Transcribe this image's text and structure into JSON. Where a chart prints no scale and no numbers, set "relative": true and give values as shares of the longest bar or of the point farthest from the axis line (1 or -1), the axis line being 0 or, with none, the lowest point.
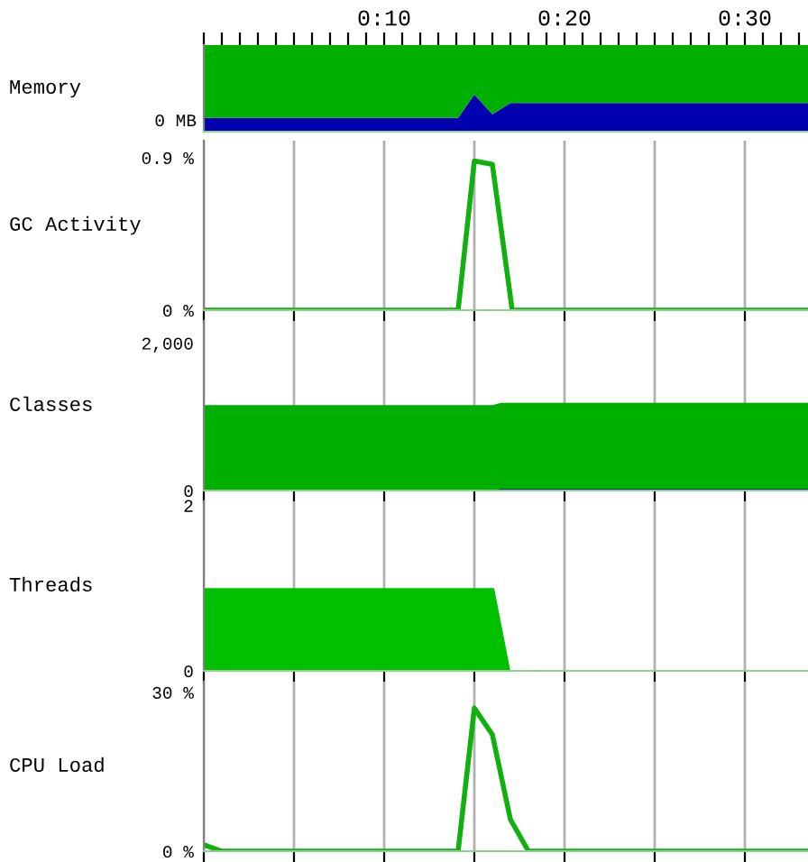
{
  "chart_data": [
    {
      "type": "area",
      "ylabel": "Memory",
      "relative": true,
      "stacked": true,
      "annotations": [
        "0 MB"
      ],
      "tick_labels": "x",
      "xlim": [
        0,
        33.5
      ],
      "xticks": [
        {
          "value": 0,
          "label": null
        },
        {
          "value": 1,
          "label": null
        },
        {
          "value": 2,
          "label": null
        },
        {
          "value": 3,
          "label": null
        },
        {
          "value": 4,
          "label": null
        },
        {
          "value": 5,
          "label": null
        },
        {
          "value": 6,
          "label": null
        },
        {
          "value": 7,
          "label": null
        },
        {
          "value": 8,
          "label": null
        },
        {
          "value": 9,
          "label": null
        },
        {
          "value": 10,
          "label": "0:10"
        },
        {
          "value": 11,
          "label": null
        },
        {
          "value": 12,
          "label": null
        },
        {
          "value": 13,
          "label": null
        },
        {
          "value": 14,
          "label": null
        },
        {
          "value": 15,
          "label": null
        },
        {
          "value": 16,
          "label": null
        },
        {
          "value": 17,
          "label": null
        },
        {
          "value": 18,
          "label": null
        },
        {
          "value": 19,
          "label": null
        },
        {
          "value": 20,
          "label": "0:20"
        },
        {
          "value": 21,
          "label": null
        },
        {
          "value": 22,
          "label": null
        },
        {
          "value": 23,
          "label": null
        },
        {
          "value": 24,
          "label": null
        },
        {
          "value": 25,
          "label": null
        },
        {
          "value": 26,
          "label": null
        },
        {
          "value": 27,
          "label": null
        },
        {
          "value": 28,
          "label": null
        },
        {
          "value": 29,
          "label": null
        },
        {
          "value": 30,
          "label": "0:30"
        },
        {
          "value": 31,
          "label": null
        },
        {
          "value": 32,
          "label": null
        },
        {
          "value": 33,
          "label": null
        }
      ],
      "series": [
        {
          "color": "#0000b0",
          "x": [
            0,
            14.1,
            15,
            16,
            17,
            33.5
          ],
          "values": [
            0.16,
            0.16,
            0.43,
            0.2,
            0.33,
            0.33
          ]
        },
        {
          "color": "#00b000",
          "x": [
            0,
            14.1,
            15,
            16,
            17,
            33.5
          ],
          "values": [
            0.84,
            0.84,
            0.57,
            0.8,
            0.67,
            0.67
          ]
        }
      ]
    },
    {
      "type": "line",
      "ylabel": "GC Activity",
      "tick_labels": "y",
      "grid": "x",
      "xlim": [
        0,
        33.5
      ],
      "ylim": [
        0,
        1.0
      ],
      "yticks": [
        {
          "value": 0,
          "label": "0 %"
        },
        {
          "value": 0.9,
          "label": "0.9 %"
        }
      ],
      "series": [
        {
          "color": "#10b010",
          "x": [
            0,
            14.1,
            15,
            16,
            17.1,
            33.5
          ],
          "values": [
            0,
            0,
            0.88,
            0.86,
            0,
            0
          ]
        }
      ]
    },
    {
      "type": "area",
      "ylabel": "Classes",
      "tick_labels": "y",
      "grid": "x",
      "xlim": [
        0,
        33.5
      ],
      "ylim": [
        0,
        2300
      ],
      "yticks": [
        {
          "value": 0,
          "label": "0"
        },
        {
          "value": 2000,
          "label": "2,000"
        }
      ],
      "series": [
        {
          "color": "#00b000",
          "x": [
            0,
            16,
            16.5,
            33.5
          ],
          "values": [
            1160,
            1160,
            1190,
            1190
          ]
        },
        {
          "color": "#0000a0",
          "x": [
            0,
            16.3,
            16.4,
            33.5
          ],
          "values": [
            0,
            0,
            20,
            20
          ]
        }
      ]
    },
    {
      "type": "area",
      "ylabel": "Threads",
      "tick_labels": "y",
      "grid": "x",
      "xlim": [
        0,
        33.5
      ],
      "ylim": [
        0,
        2.05
      ],
      "yticks": [
        0,
        2
      ],
      "series": [
        {
          "color": "#00c000",
          "x": [
            0,
            16.1,
            17,
            33.5
          ],
          "values": [
            1,
            1,
            0,
            0
          ]
        }
      ]
    },
    {
      "type": "line",
      "ylabel": "CPU Load",
      "tick_labels": "y",
      "grid": "x",
      "xlim": [
        0,
        33.5
      ],
      "ylim": [
        0,
        32
      ],
      "yticks": [
        {
          "value": 0,
          "label": "0 %"
        },
        {
          "value": 30,
          "label": "30 %"
        }
      ],
      "series": [
        {
          "color": "#10b010",
          "x": [
            0,
            1,
            14.1,
            15,
            16,
            17,
            18,
            33.5
          ],
          "values": [
            1.2,
            0,
            0,
            27,
            22,
            6,
            0,
            0
          ]
        }
      ]
    }
  ]
}
